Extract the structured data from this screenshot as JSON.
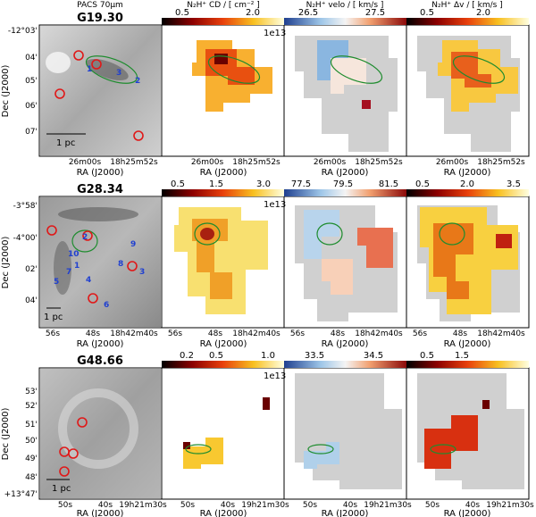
{
  "figure": {
    "pacs_label": "PACS 70µm",
    "x_axis_label": "RA (J2000)",
    "y_axis_label": "Dec (J2000)",
    "scale_bar": "1 pc"
  },
  "chart_data": [
    {
      "type": "heatmap",
      "source": "G19.30",
      "panels": [
        "PACS 70µm",
        "N₂H⁺ CD / [ cm⁻² ]",
        "N₂H⁺ velo / [ km/s ]",
        "N₂H⁺ Δv / [ km/s ]"
      ],
      "yticks": [
        "-12°03'",
        "04'",
        "05'",
        "06'",
        "07'"
      ],
      "xticks": [
        "26m00s",
        "18h25m52s"
      ],
      "colorbars": [
        {
          "quantity": "N₂H⁺ CD / [ cm⁻² ]",
          "ticks": [
            "0.5",
            "2.0"
          ],
          "scale": "1e13"
        },
        {
          "quantity": "N₂H⁺ velo / [ km/s ]",
          "ticks": [
            "26.5",
            "27.5"
          ]
        },
        {
          "quantity": "N₂H⁺ Δv / [ km/s ]",
          "ticks": [
            "0.5",
            "2.0"
          ]
        }
      ],
      "source_labels": [
        "1",
        "2",
        "3"
      ]
    },
    {
      "type": "heatmap",
      "source": "G28.34",
      "panels": [
        "PACS 70µm",
        "N₂H⁺ CD",
        "N₂H⁺ velo",
        "N₂H⁺ Δv"
      ],
      "yticks": [
        "-3°58'",
        "-4°00'",
        "02'",
        "04'"
      ],
      "xticks": [
        "56s",
        "48s",
        "18h42m40s"
      ],
      "colorbars": [
        {
          "quantity": "N₂H⁺ CD",
          "ticks": [
            "0.5",
            "1.5",
            "3.0"
          ],
          "scale": "1e13"
        },
        {
          "quantity": "N₂H⁺ velo",
          "ticks": [
            "77.5",
            "79.5",
            "81.5"
          ]
        },
        {
          "quantity": "N₂H⁺ Δv",
          "ticks": [
            "0.5",
            "2.0",
            "3.5"
          ]
        }
      ],
      "source_labels": [
        "1",
        "2",
        "3",
        "4",
        "5",
        "6",
        "7",
        "8",
        "9",
        "10"
      ]
    },
    {
      "type": "heatmap",
      "source": "G48.66",
      "panels": [
        "PACS 70µm",
        "N₂H⁺ CD",
        "N₂H⁺ velo",
        "N₂H⁺ Δv"
      ],
      "yticks": [
        "53'",
        "52'",
        "51'",
        "50'",
        "49'",
        "48'",
        "+13°47'"
      ],
      "xticks": [
        "50s",
        "40s",
        "19h21m30s"
      ],
      "colorbars": [
        {
          "quantity": "N₂H⁺ CD",
          "ticks": [
            "0.2",
            "0.5",
            "1.0"
          ],
          "scale": "1e13"
        },
        {
          "quantity": "N₂H⁺ velo",
          "ticks": [
            "33.5",
            "34.5"
          ]
        },
        {
          "quantity": "N₂H⁺ Δv",
          "ticks": [
            "0.5",
            "1.5"
          ]
        }
      ],
      "source_labels": []
    }
  ]
}
